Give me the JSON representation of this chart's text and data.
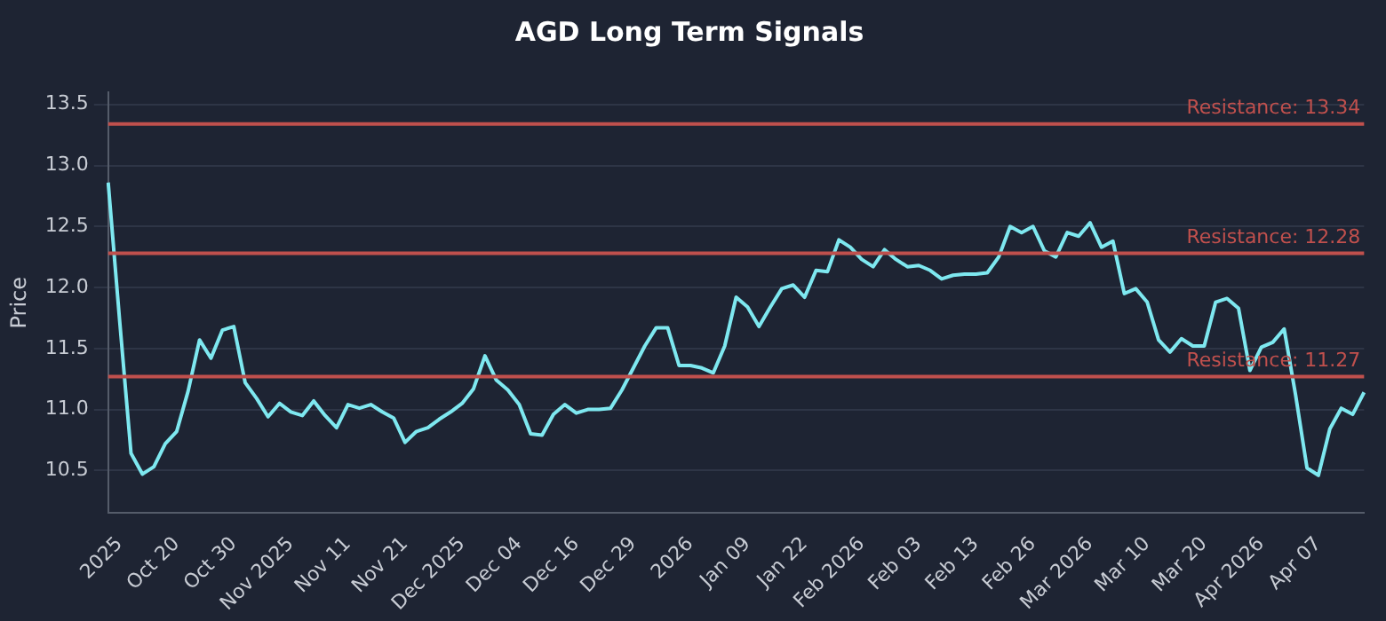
{
  "chart_data": {
    "type": "line",
    "title": "AGD Long Term Signals",
    "ylabel": "Price",
    "categories": [
      null,
      "2025",
      null,
      null,
      null,
      null,
      "Oct 20",
      null,
      null,
      null,
      null,
      "Oct 30",
      null,
      null,
      null,
      null,
      "Nov 2025",
      null,
      null,
      null,
      null,
      "Nov 11",
      null,
      null,
      null,
      null,
      "Nov 21",
      null,
      null,
      null,
      null,
      "Dec 2025",
      null,
      null,
      null,
      null,
      "Dec 04",
      null,
      null,
      null,
      null,
      "Dec 16",
      null,
      null,
      null,
      null,
      "Dec 29",
      null,
      null,
      null,
      null,
      "2026",
      null,
      null,
      null,
      null,
      "Jan 09",
      null,
      null,
      null,
      null,
      "Jan 22",
      null,
      null,
      null,
      null,
      "Feb 2026",
      null,
      null,
      null,
      null,
      "Feb 03",
      null,
      null,
      null,
      null,
      "Feb 13",
      null,
      null,
      null,
      null,
      "Feb 26",
      null,
      null,
      null,
      null,
      "Mar 2026",
      null,
      null,
      null,
      null,
      "Mar 10",
      null,
      null,
      null,
      null,
      "Mar 20",
      null,
      null,
      null,
      null,
      "Apr 2026",
      null,
      null,
      null,
      null,
      "Apr 07",
      null,
      null,
      null,
      null
    ],
    "series": [
      {
        "color": "#7ee8f0",
        "values": [
          12.86,
          11.73,
          10.64,
          10.47,
          10.53,
          10.72,
          10.82,
          11.15,
          11.57,
          11.42,
          11.65,
          11.68,
          11.22,
          11.09,
          10.94,
          11.05,
          10.98,
          10.95,
          11.07,
          10.95,
          10.85,
          11.04,
          11.01,
          11.04,
          10.98,
          10.93,
          10.73,
          10.82,
          10.85,
          10.92,
          10.98,
          11.05,
          11.17,
          11.44,
          11.24,
          11.16,
          11.04,
          10.8,
          10.79,
          10.96,
          11.04,
          10.97,
          11.0,
          11.0,
          11.01,
          11.16,
          11.34,
          11.52,
          11.67,
          11.67,
          11.36,
          11.36,
          11.34,
          11.3,
          11.52,
          11.92,
          11.84,
          11.68,
          11.84,
          11.99,
          12.02,
          11.92,
          12.14,
          12.13,
          12.39,
          12.33,
          12.23,
          12.17,
          12.31,
          12.23,
          12.17,
          12.18,
          12.14,
          12.07,
          12.1,
          12.11,
          12.11,
          12.12,
          12.25,
          12.5,
          12.45,
          12.5,
          12.3,
          12.25,
          12.45,
          12.42,
          12.53,
          12.33,
          12.38,
          11.95,
          11.99,
          11.88,
          11.57,
          11.47,
          11.58,
          11.52,
          11.52,
          11.88,
          11.91,
          11.83,
          11.32,
          11.51,
          11.55,
          11.66,
          11.12,
          10.52,
          10.46,
          10.84,
          11.01,
          10.96,
          11.14
        ]
      }
    ],
    "ylim": [
      10.15,
      13.6
    ],
    "yticks": [
      10.5,
      {
        "value": 11,
        "label": "11.0"
      },
      11.5,
      {
        "value": 12,
        "label": "12.0"
      },
      12.5,
      {
        "value": 13,
        "label": "13.0"
      },
      13.5
    ],
    "ref_lines": [
      {
        "axis": "y",
        "value": 13.34,
        "label": "Resistance: 13.34",
        "color": "#c0504d"
      },
      {
        "axis": "y",
        "value": 12.28,
        "label": "Resistance: 12.28",
        "color": "#c0504d"
      },
      {
        "axis": "y",
        "value": 11.27,
        "label": "Resistance: 11.27",
        "color": "#c0504d"
      }
    ],
    "grid": "y",
    "legend": false,
    "marker": "none",
    "line_style": "solid"
  }
}
